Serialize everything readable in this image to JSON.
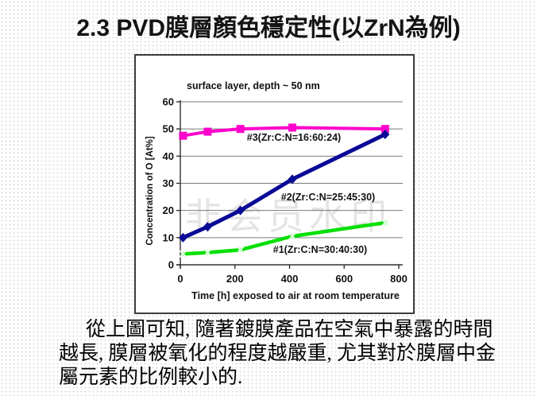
{
  "slide": {
    "title": "2.3  PVD膜層顏色穩定性(以ZrN為例)",
    "watermark": "非会员水印",
    "paragraph_lines": [
      "從上圖可知, 隨著鍍膜產品在空氣中暴露的時間",
      "越長, 膜層被氧化的程度越嚴重, 尤其對於膜層中金",
      "屬元素的比例較小的."
    ]
  },
  "chart_data": {
    "type": "line",
    "title": "surface layer, depth ~ 50 nm",
    "xlabel": "Time [h] exposed to air at room temperature",
    "ylabel": "Concentration of O [At%]",
    "xlim": [
      0,
      800
    ],
    "ylim": [
      0,
      60
    ],
    "xticks": [
      0,
      200,
      400,
      600,
      800
    ],
    "yticks": [
      0,
      10,
      20,
      30,
      40,
      50,
      60
    ],
    "grid": "horizontal",
    "legend_position": "inline-annotations",
    "axis_color": "#303030",
    "grid_color": "#7a7a7a",
    "series": [
      {
        "name": "#3(Zr:C:N=16:60:24)",
        "color": "#ff00cc",
        "marker": "square",
        "marker_color": "#ff00cc",
        "x": [
          10,
          100,
          220,
          410,
          750
        ],
        "y": [
          47.5,
          49,
          50,
          50.5,
          50
        ]
      },
      {
        "name": "#2(Zr:C:N=25:45:30)",
        "color": "#0a0a96",
        "marker": "diamond",
        "marker_color": "#0a0a96",
        "x": [
          10,
          100,
          220,
          410,
          750
        ],
        "y": [
          10,
          14,
          20,
          31.5,
          48
        ]
      },
      {
        "name": "#1(Zr:C:N=30:40:30)",
        "color": "#00e000",
        "marker": "x",
        "marker_color": "#dcffdc",
        "x": [
          10,
          100,
          220,
          410,
          750
        ],
        "y": [
          4,
          4.5,
          5.5,
          10.5,
          15.5
        ]
      }
    ]
  }
}
